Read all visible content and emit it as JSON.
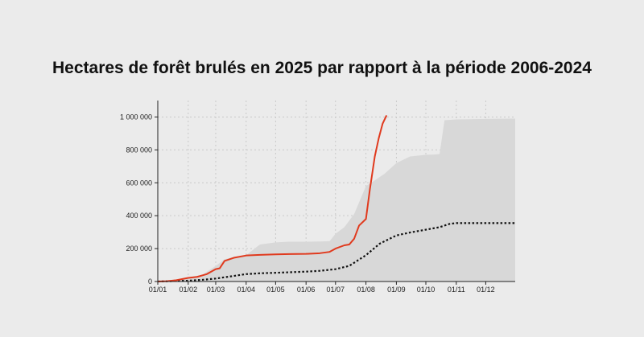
{
  "chart_data": {
    "type": "area",
    "title": "Hectares de forêt brulés en 2025 par rapport à la période 2006-2024",
    "xlabel": "",
    "ylabel": "",
    "x_tick_labels": [
      "01/01",
      "01/02",
      "01/03",
      "01/04",
      "01/05",
      "01/06",
      "01/07",
      "01/08",
      "01/09",
      "01/10",
      "01/11",
      "01/12"
    ],
    "y_tick_labels": [
      "0",
      "200 000",
      "400 000",
      "600 000",
      "800 000",
      "1 000 000"
    ],
    "y_ticks": [
      0,
      200000,
      400000,
      600000,
      800000,
      1000000
    ],
    "ylim": [
      0,
      1100000
    ],
    "xlim": [
      "01/01",
      "31/12"
    ],
    "grid": true,
    "series": [
      {
        "role": "range",
        "color": "#d8d8d8",
        "x": [
          "01/01",
          "15/01",
          "01/02",
          "15/02",
          "01/03",
          "10/03",
          "20/03",
          "01/04",
          "15/04",
          "01/05",
          "15/05",
          "01/06",
          "15/06",
          "25/06",
          "01/07",
          "10/07",
          "20/07",
          "01/08",
          "10/08",
          "20/08",
          "01/09",
          "15/09",
          "01/10",
          "10/10",
          "15/10",
          "20/10",
          "01/11",
          "01/12",
          "31/12"
        ],
        "upper": [
          0,
          8000,
          25000,
          40000,
          95000,
          135000,
          150000,
          160000,
          225000,
          238000,
          242000,
          242000,
          243000,
          245000,
          290000,
          330000,
          410000,
          580000,
          615000,
          655000,
          720000,
          760000,
          770000,
          772000,
          775000,
          980000,
          985000,
          988000,
          990000
        ],
        "lower": [
          0,
          0,
          0,
          0,
          0,
          0,
          0,
          0,
          0,
          0,
          0,
          0,
          0,
          0,
          0,
          0,
          0,
          0,
          0,
          0,
          0,
          0,
          0,
          0,
          0,
          0,
          0,
          0,
          0
        ]
      },
      {
        "role": "average",
        "color": "#111111",
        "style": "dotted",
        "x": [
          "01/01",
          "01/02",
          "15/02",
          "01/03",
          "15/03",
          "01/04",
          "15/04",
          "01/05",
          "01/06",
          "15/06",
          "01/07",
          "15/07",
          "01/08",
          "15/08",
          "01/09",
          "15/09",
          "01/10",
          "10/10",
          "15/10",
          "25/10",
          "01/11",
          "01/12",
          "31/12"
        ],
        "values": [
          0,
          5000,
          10000,
          18000,
          30000,
          45000,
          50000,
          53000,
          60000,
          65000,
          75000,
          95000,
          160000,
          230000,
          280000,
          298000,
          315000,
          325000,
          330000,
          350000,
          355000,
          355000,
          355000
        ]
      },
      {
        "role": "2025",
        "color": "#e03a1e",
        "x": [
          "01/01",
          "10/01",
          "20/01",
          "01/02",
          "10/02",
          "20/02",
          "01/03",
          "05/03",
          "10/03",
          "20/03",
          "01/04",
          "15/04",
          "01/05",
          "15/05",
          "01/06",
          "15/06",
          "25/06",
          "01/07",
          "10/07",
          "15/07",
          "20/07",
          "25/07",
          "01/08",
          "05/08",
          "10/08",
          "14/08",
          "18/08",
          "22/08"
        ],
        "values": [
          0,
          2000,
          8000,
          22000,
          28000,
          45000,
          75000,
          80000,
          125000,
          145000,
          158000,
          162000,
          165000,
          167000,
          168000,
          172000,
          180000,
          200000,
          220000,
          225000,
          260000,
          340000,
          380000,
          560000,
          760000,
          870000,
          960000,
          1010000
        ]
      }
    ]
  }
}
